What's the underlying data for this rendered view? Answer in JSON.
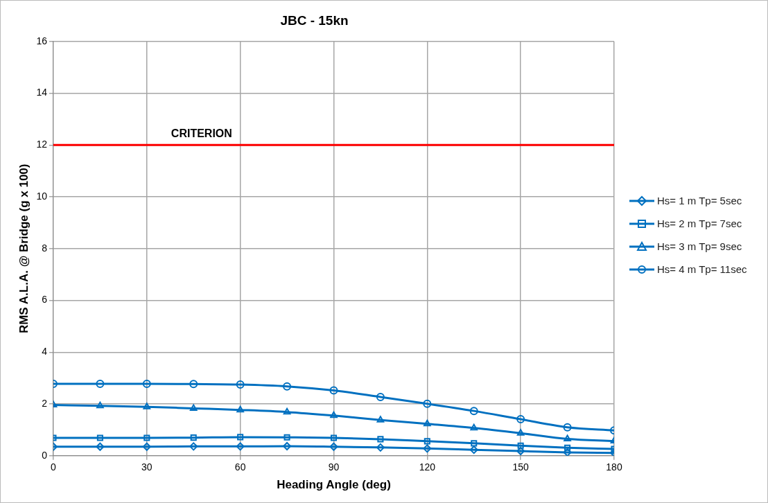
{
  "chart_data": {
    "type": "line",
    "title": "JBC - 15kn",
    "xlabel": "Heading Angle (deg)",
    "ylabel": "RMS A.L.A. @ Bridge (g x 100)",
    "x": [
      0,
      15,
      30,
      45,
      60,
      75,
      90,
      105,
      120,
      135,
      150,
      165,
      180
    ],
    "series": [
      {
        "name": "Hs= 1 m Tp= 5sec",
        "color": "#0070c0",
        "marker": "diamond",
        "values": [
          0.35,
          0.35,
          0.35,
          0.36,
          0.36,
          0.37,
          0.35,
          0.32,
          0.28,
          0.23,
          0.18,
          0.13,
          0.11
        ]
      },
      {
        "name": "Hs= 2 m Tp= 7sec",
        "color": "#0070c0",
        "marker": "square",
        "values": [
          0.69,
          0.69,
          0.69,
          0.7,
          0.72,
          0.71,
          0.69,
          0.64,
          0.56,
          0.48,
          0.39,
          0.31,
          0.26
        ]
      },
      {
        "name": "Hs= 3 m Tp= 9sec",
        "color": "#0070c0",
        "marker": "triangle",
        "values": [
          1.96,
          1.93,
          1.89,
          1.83,
          1.77,
          1.69,
          1.55,
          1.38,
          1.23,
          1.07,
          0.87,
          0.65,
          0.57
        ]
      },
      {
        "name": "Hs= 4 m Tp= 11sec",
        "color": "#0070c0",
        "marker": "circle",
        "values": [
          2.78,
          2.78,
          2.78,
          2.77,
          2.75,
          2.68,
          2.52,
          2.27,
          2.01,
          1.73,
          1.41,
          1.1,
          0.98
        ]
      }
    ],
    "xlim": [
      0,
      180
    ],
    "xticks": [
      0,
      30,
      60,
      90,
      120,
      150,
      180
    ],
    "ylim": [
      0,
      16
    ],
    "yticks": [
      0,
      2,
      4,
      6,
      8,
      10,
      12,
      14,
      16
    ],
    "ref_lines": [
      {
        "axis": "y",
        "value": 12,
        "label": "CRITERION",
        "color": "#ff0000"
      }
    ],
    "grid": true,
    "legend": "right"
  }
}
